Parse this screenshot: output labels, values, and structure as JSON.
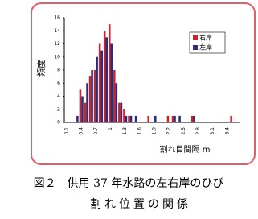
{
  "chart_data": {
    "type": "bar",
    "y_label": "頻度",
    "x_label": "割れ目間隔 m",
    "categories": [
      "0.1",
      null,
      null,
      "0.4",
      null,
      null,
      "0.7",
      null,
      null,
      "1",
      null,
      null,
      "1.3",
      null,
      null,
      "1.6",
      null,
      null,
      "1.9",
      null,
      null,
      "2.2",
      null,
      null,
      "2.5",
      null,
      null,
      "2.8",
      null,
      null,
      "3.1",
      null,
      null,
      "3.4",
      null,
      null
    ],
    "series": [
      {
        "name": "右岸",
        "color": "#c8242c",
        "values": [
          0,
          0,
          0,
          5,
          3,
          7,
          8,
          12,
          14,
          15,
          8,
          3,
          2,
          1,
          0,
          0,
          0,
          1,
          0,
          0,
          0,
          1,
          1,
          0,
          0,
          0,
          1,
          0,
          0,
          0,
          0,
          0,
          0,
          0,
          1,
          0
        ]
      },
      {
        "name": "左岸",
        "color": "#2b2b78",
        "values": [
          0,
          0,
          1,
          4,
          6,
          8,
          10,
          11,
          13,
          12,
          6,
          3,
          1,
          1,
          1,
          0,
          0,
          0,
          1,
          0,
          0,
          0,
          1,
          1,
          0,
          0,
          1,
          0,
          0,
          0,
          0,
          0,
          0,
          0,
          0,
          0
        ]
      }
    ],
    "ylim": [
      0,
      16
    ],
    "yticks": [
      0,
      2,
      4,
      6,
      8,
      10,
      12,
      14,
      16
    ],
    "grid": false,
    "legend": "upper right",
    "caption": [
      "図２　供用 37 年水路の左右岸のひび",
      "割れ位置の関係"
    ]
  }
}
